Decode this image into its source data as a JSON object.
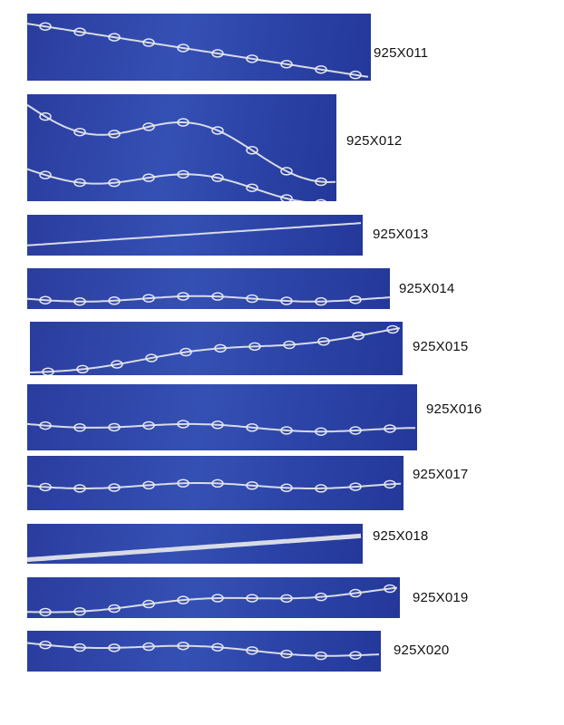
{
  "catalog": {
    "background_color": "#2f47ab",
    "items": [
      {
        "code": "925X011",
        "style": "twisted-oval"
      },
      {
        "code": "925X012",
        "style": "bar-bead-wave"
      },
      {
        "code": "925X013",
        "style": "box"
      },
      {
        "code": "925X014",
        "style": "bar-figure-eight"
      },
      {
        "code": "925X015",
        "style": "twisted-bar"
      },
      {
        "code": "925X016",
        "style": "heart-link-bar"
      },
      {
        "code": "925X017",
        "style": "bar-link"
      },
      {
        "code": "925X018",
        "style": "flat-snake"
      },
      {
        "code": "925X019",
        "style": "mariner-plate"
      },
      {
        "code": "925X020",
        "style": "twisted-oval"
      }
    ]
  }
}
